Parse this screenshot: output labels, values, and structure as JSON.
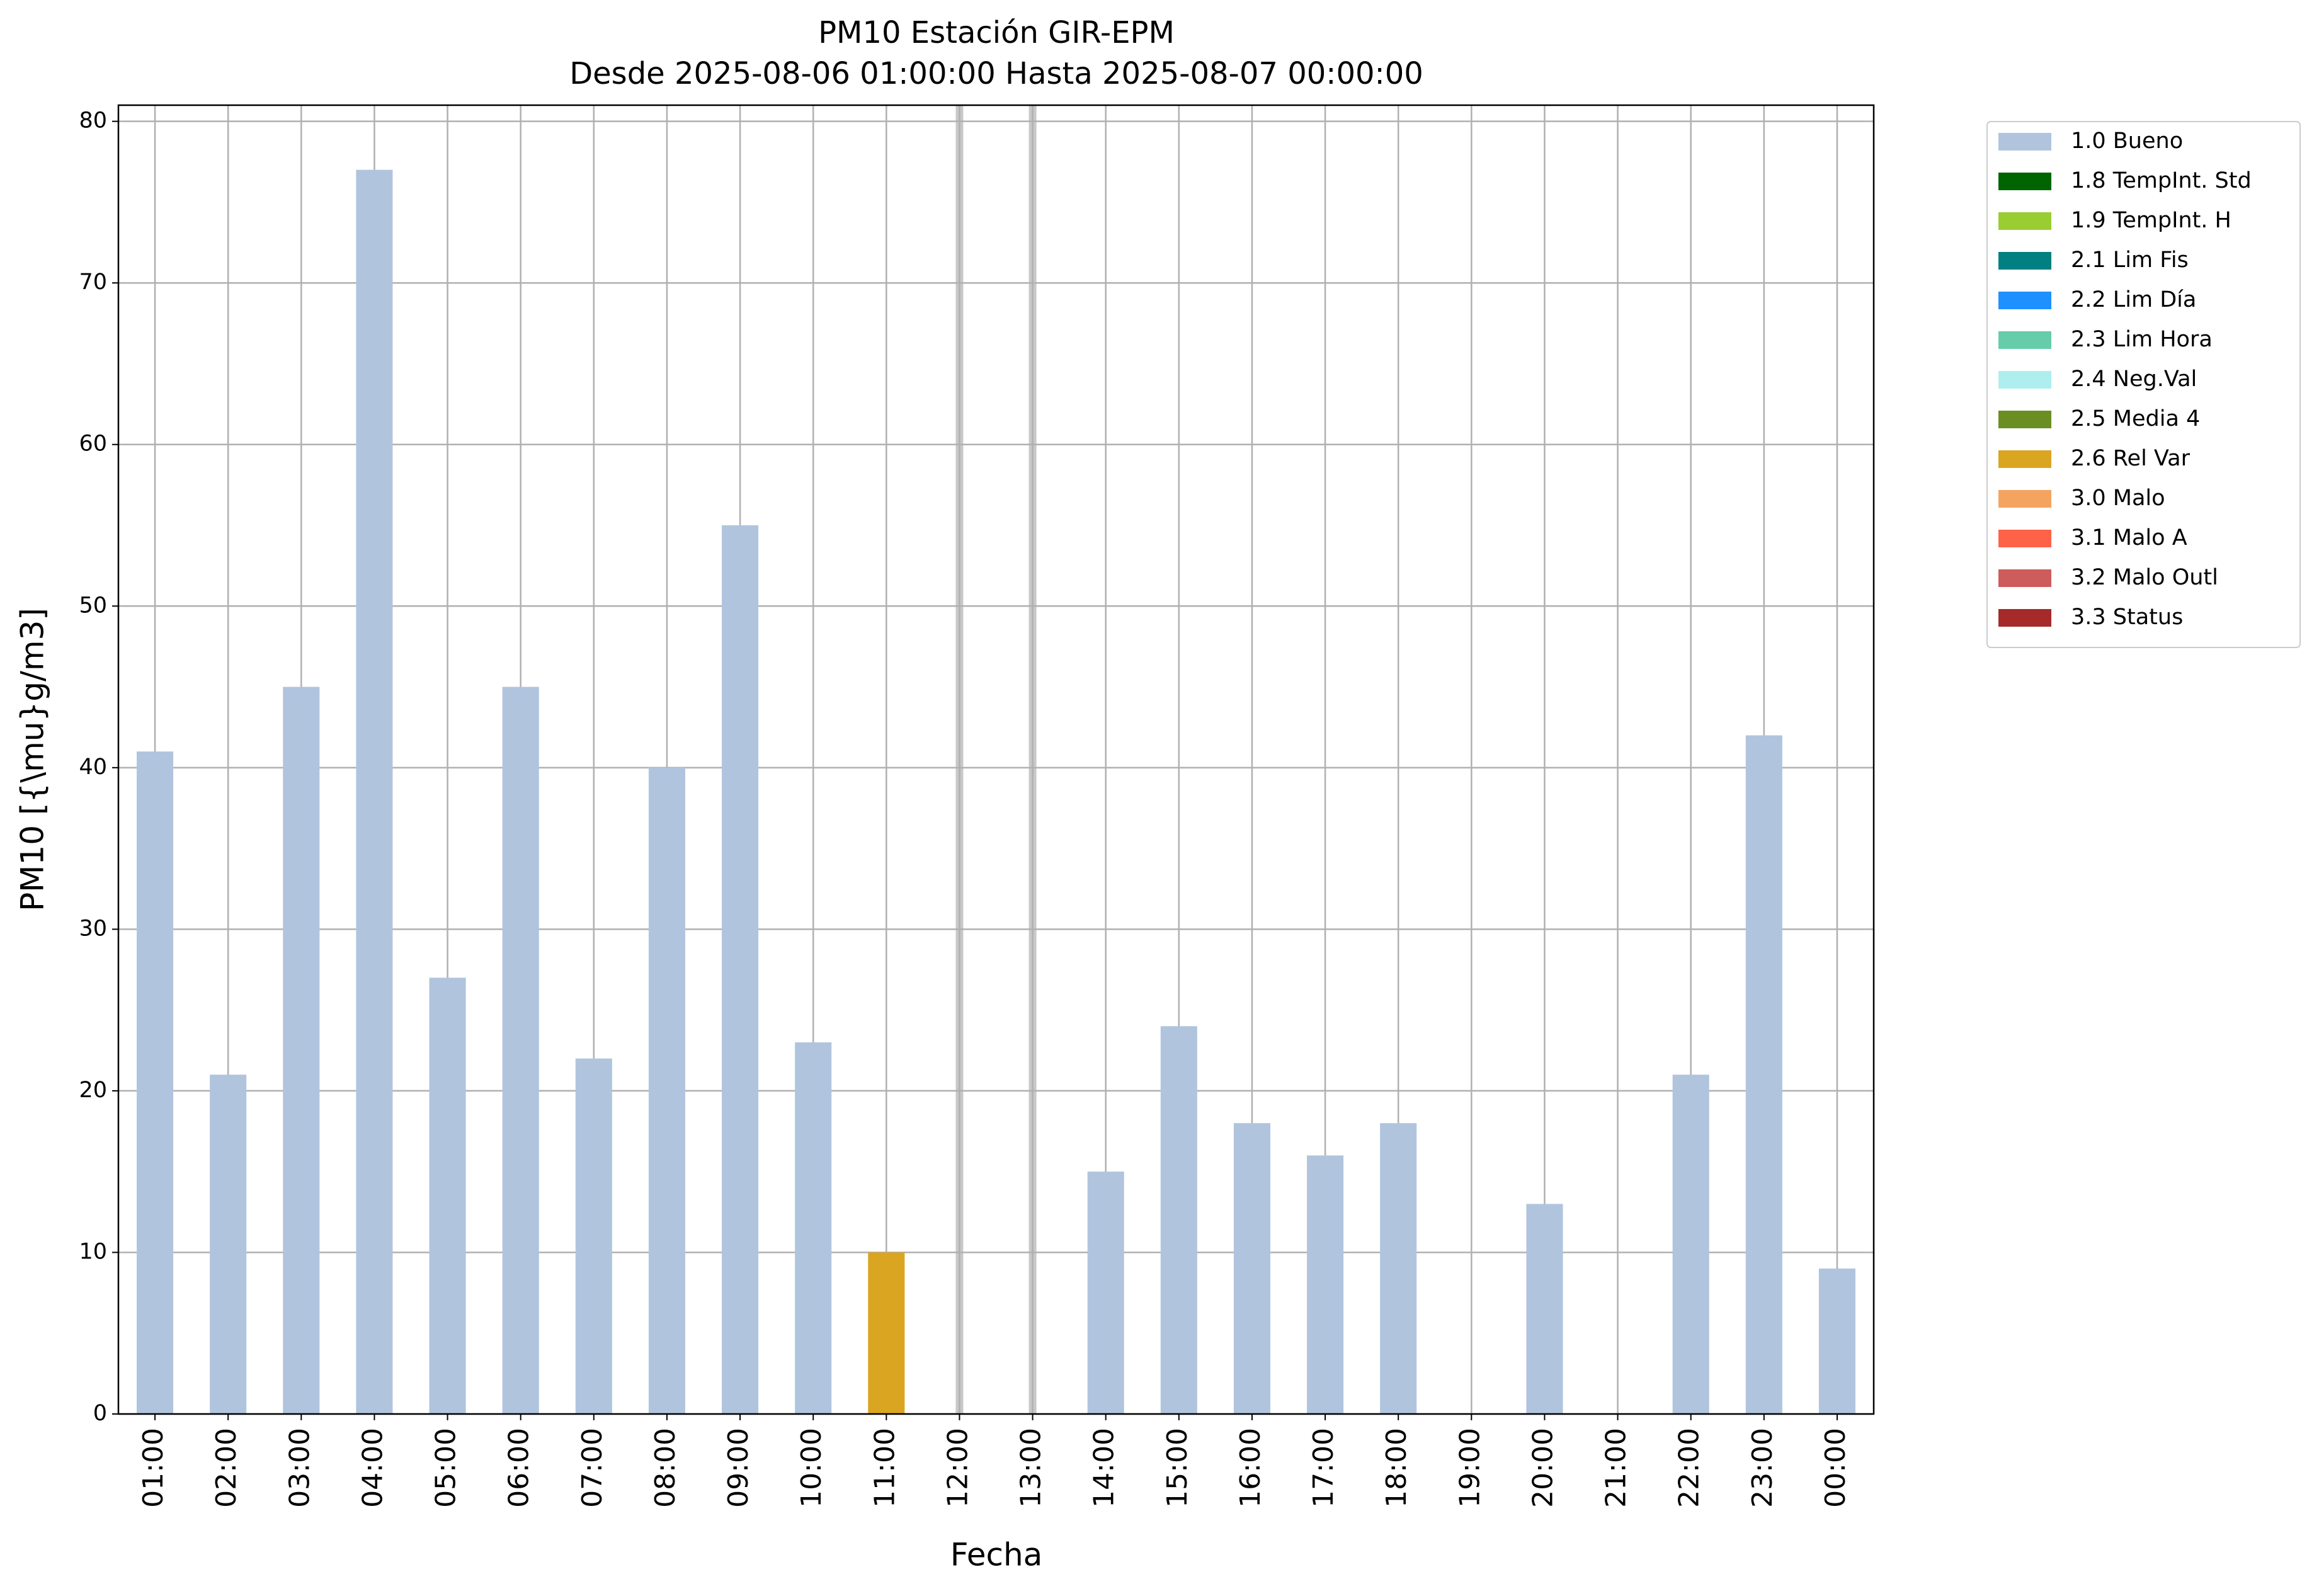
{
  "chart_data": {
    "type": "bar",
    "stacked": true,
    "title": "PM10 Estación GIR-EPM",
    "subtitle": "Desde 2025-08-06 01:00:00 Hasta 2025-08-07 00:00:00",
    "x_label": "Fecha",
    "y_label": "PM10 [{\\mu}g/m3]",
    "categories": [
      "01:00",
      "02:00",
      "03:00",
      "04:00",
      "05:00",
      "06:00",
      "07:00",
      "08:00",
      "09:00",
      "10:00",
      "11:00",
      "12:00",
      "13:00",
      "14:00",
      "15:00",
      "16:00",
      "17:00",
      "18:00",
      "19:00",
      "20:00",
      "21:00",
      "22:00",
      "23:00",
      "00:00"
    ],
    "series": [
      {
        "name": "1.0 Bueno",
        "color": "#b0c4de",
        "values": [
          41,
          21,
          45,
          77,
          27,
          45,
          22,
          40,
          55,
          23,
          null,
          null,
          null,
          15,
          24,
          18,
          16,
          18,
          null,
          13,
          null,
          21,
          42,
          9
        ]
      },
      {
        "name": "1.8 TempInt. Std",
        "color": "#006400",
        "values": [
          null,
          null,
          null,
          null,
          null,
          null,
          null,
          null,
          null,
          null,
          null,
          null,
          null,
          null,
          null,
          null,
          null,
          null,
          null,
          null,
          null,
          null,
          null,
          null
        ]
      },
      {
        "name": "1.9 TempInt. H",
        "color": "#9acd32",
        "values": [
          null,
          null,
          null,
          null,
          null,
          null,
          null,
          null,
          null,
          null,
          null,
          null,
          null,
          null,
          null,
          null,
          null,
          null,
          null,
          null,
          null,
          null,
          null,
          null
        ]
      },
      {
        "name": "2.1 Lim Fis",
        "color": "#008080",
        "values": [
          null,
          null,
          null,
          null,
          null,
          null,
          null,
          null,
          null,
          null,
          null,
          null,
          null,
          null,
          null,
          null,
          null,
          null,
          null,
          null,
          null,
          null,
          null,
          null
        ]
      },
      {
        "name": "2.2 Lim Día",
        "color": "#1e90ff",
        "values": [
          null,
          null,
          null,
          null,
          null,
          null,
          null,
          null,
          null,
          null,
          null,
          null,
          null,
          null,
          null,
          null,
          null,
          null,
          null,
          null,
          null,
          null,
          null,
          null
        ]
      },
      {
        "name": "2.3 Lim Hora",
        "color": "#66cdaa",
        "values": [
          null,
          null,
          null,
          null,
          null,
          null,
          null,
          null,
          null,
          null,
          null,
          null,
          null,
          null,
          null,
          null,
          null,
          null,
          null,
          null,
          null,
          null,
          null,
          null
        ]
      },
      {
        "name": "2.4 Neg.Val",
        "color": "#afeeee",
        "values": [
          null,
          null,
          null,
          null,
          null,
          null,
          null,
          null,
          null,
          null,
          null,
          null,
          null,
          null,
          null,
          null,
          null,
          null,
          null,
          null,
          null,
          null,
          null,
          null
        ]
      },
      {
        "name": "2.5 Media 4",
        "color": "#6b8e23",
        "values": [
          null,
          null,
          null,
          null,
          null,
          null,
          null,
          null,
          null,
          null,
          null,
          null,
          null,
          null,
          null,
          null,
          null,
          null,
          null,
          null,
          null,
          null,
          null,
          null
        ]
      },
      {
        "name": "2.6 Rel Var",
        "color": "#daa520",
        "values": [
          null,
          null,
          null,
          null,
          null,
          null,
          null,
          null,
          null,
          null,
          10,
          null,
          null,
          null,
          null,
          null,
          null,
          null,
          null,
          null,
          null,
          null,
          null,
          null
        ]
      },
      {
        "name": "3.0 Malo",
        "color": "#f4a460",
        "values": [
          null,
          null,
          null,
          null,
          null,
          null,
          null,
          null,
          null,
          null,
          null,
          null,
          null,
          null,
          null,
          null,
          null,
          null,
          null,
          null,
          null,
          null,
          null,
          null
        ]
      },
      {
        "name": "3.1 Malo A",
        "color": "#ff6347",
        "values": [
          null,
          null,
          null,
          null,
          null,
          null,
          null,
          null,
          null,
          null,
          null,
          null,
          null,
          null,
          null,
          null,
          null,
          null,
          null,
          null,
          null,
          null,
          null,
          null
        ]
      },
      {
        "name": "3.2 Malo Outl",
        "color": "#cd5c5c",
        "values": [
          null,
          null,
          null,
          null,
          null,
          null,
          null,
          null,
          null,
          null,
          null,
          null,
          null,
          null,
          null,
          null,
          null,
          null,
          null,
          null,
          null,
          null,
          null,
          null
        ]
      },
      {
        "name": "3.3 Status",
        "color": "#a52a2a",
        "values": [
          null,
          null,
          null,
          null,
          null,
          null,
          null,
          null,
          null,
          null,
          null,
          null,
          null,
          null,
          null,
          null,
          null,
          null,
          null,
          null,
          null,
          null,
          null,
          null
        ]
      }
    ],
    "ylim": [
      0,
      81
    ],
    "yticks": [
      0,
      10,
      20,
      30,
      40,
      50,
      60,
      70,
      80
    ],
    "grid": true,
    "legend": "outside-upper-right"
  }
}
